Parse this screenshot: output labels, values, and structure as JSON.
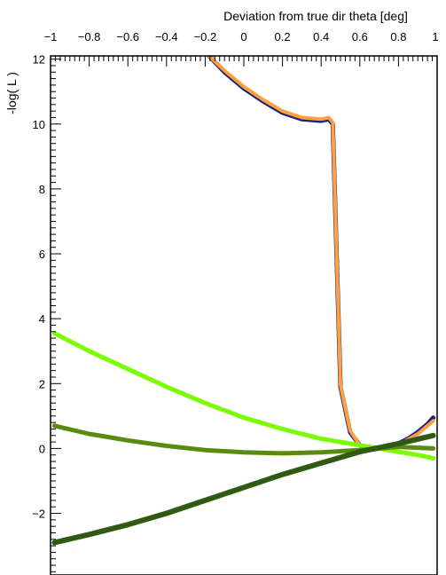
{
  "chart_data": {
    "type": "line",
    "title": "",
    "xlabel": "Deviation from true dir theta [deg]",
    "ylabel": "-log( L )",
    "xlim": [
      -1,
      1
    ],
    "ylim": [
      -3.9,
      12.1
    ],
    "x_axis_position": "top",
    "grid": false,
    "legend": "none",
    "x_ticks": [
      -1,
      -0.8,
      -0.6,
      -0.4,
      -0.2,
      0,
      0.2,
      0.4,
      0.6,
      0.8,
      1
    ],
    "x_tick_labels": [
      "−1",
      "−0.8",
      "−0.6",
      "−0.4",
      "−0.2",
      "0",
      "0.2",
      "0.4",
      "0.6",
      "0.8",
      "1"
    ],
    "y_ticks": [
      -2,
      0,
      2,
      4,
      6,
      8,
      10,
      12
    ],
    "y_tick_labels": [
      "−2",
      "0",
      "2",
      "4",
      "6",
      "8",
      "10",
      "12"
    ],
    "series": [
      {
        "color": "#1a237e",
        "width": 5,
        "x": [
          -0.18,
          -0.1,
          0.0,
          0.1,
          0.2,
          0.3,
          0.4,
          0.44,
          0.46,
          0.5,
          0.55,
          0.6,
          0.65,
          0.7,
          0.75,
          0.8,
          0.85,
          0.9,
          0.95,
          0.98
        ],
        "y": [
          12.1,
          11.6,
          11.1,
          10.7,
          10.35,
          10.15,
          10.1,
          10.15,
          10.0,
          1.9,
          0.5,
          0.1,
          -0.05,
          0.0,
          0.05,
          0.15,
          0.3,
          0.5,
          0.75,
          0.95
        ]
      },
      {
        "color": "#ffa040",
        "width": 4,
        "x": [
          -0.18,
          -0.1,
          0.0,
          0.1,
          0.2,
          0.3,
          0.4,
          0.44,
          0.46,
          0.5,
          0.55,
          0.6,
          0.65,
          0.7,
          0.75,
          0.8,
          0.85,
          0.9,
          0.95,
          0.98
        ],
        "y": [
          12.1,
          11.65,
          11.15,
          10.75,
          10.4,
          10.2,
          10.15,
          10.2,
          10.05,
          1.95,
          0.55,
          0.1,
          -0.05,
          0.0,
          0.05,
          0.12,
          0.28,
          0.45,
          0.7,
          0.85
        ]
      },
      {
        "color": "#7cfc00",
        "width": 5,
        "x": [
          -0.98,
          -0.8,
          -0.6,
          -0.4,
          -0.2,
          0.0,
          0.2,
          0.4,
          0.6,
          0.7,
          0.8,
          0.9,
          0.98
        ],
        "y": [
          3.55,
          3.0,
          2.45,
          1.9,
          1.4,
          0.95,
          0.6,
          0.3,
          0.1,
          0.0,
          -0.1,
          -0.2,
          -0.3
        ]
      },
      {
        "color": "#5a8a10",
        "width": 5,
        "x": [
          -0.98,
          -0.8,
          -0.6,
          -0.4,
          -0.2,
          0.0,
          0.2,
          0.4,
          0.6,
          0.8,
          0.98
        ],
        "y": [
          0.7,
          0.45,
          0.25,
          0.08,
          -0.05,
          -0.12,
          -0.15,
          -0.12,
          -0.05,
          0.05,
          0.0
        ]
      },
      {
        "color": "#2f5a12",
        "width": 6,
        "x": [
          -0.98,
          -0.8,
          -0.6,
          -0.4,
          -0.2,
          0.0,
          0.2,
          0.4,
          0.6,
          0.8,
          0.98
        ],
        "y": [
          -2.9,
          -2.65,
          -2.35,
          -2.0,
          -1.6,
          -1.2,
          -0.8,
          -0.45,
          -0.1,
          0.15,
          0.4
        ]
      }
    ]
  }
}
